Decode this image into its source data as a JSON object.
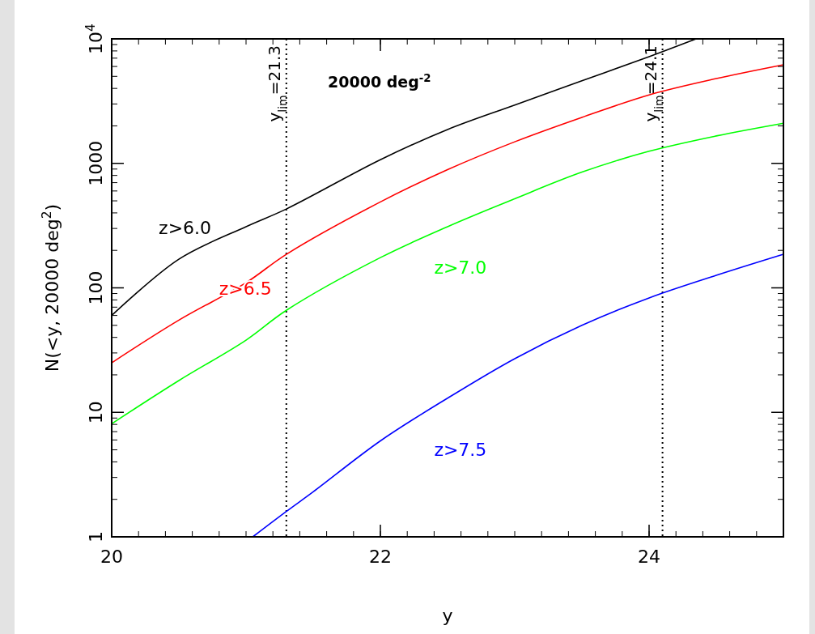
{
  "chart_data": {
    "type": "line",
    "xlabel": "y",
    "ylabel": "N(<y,  20000  deg$^{2}$)",
    "log": "y",
    "xlim": [
      20,
      25
    ],
    "xticks": [
      20,
      22,
      24
    ],
    "ylim": [
      1,
      10000
    ],
    "yticks": [
      1,
      10,
      100,
      1000,
      {
        "value": 10000,
        "label": "10$^{4}$"
      }
    ],
    "grid": false,
    "marker": "none",
    "line_style": "solid",
    "annotations": [
      "20000 deg$^{-2}$"
    ],
    "ref_lines": [
      {
        "axis": "x",
        "value": 21.3,
        "label": "y$_{lim}$=21.3",
        "line_style": "dotted",
        "color": "#000000"
      },
      {
        "axis": "x",
        "value": 24.1,
        "label": "y$_{lim}$=24.1",
        "line_style": "dotted",
        "color": "#000000"
      }
    ],
    "series": [
      {
        "name": "z>6.0",
        "color": "#000000",
        "x": [
          20,
          20.5,
          21,
          21.3,
          22,
          22.5,
          23,
          23.5,
          24,
          24.35
        ],
        "values": [
          60,
          170,
          310,
          430,
          1070,
          1870,
          2940,
          4600,
          7200,
          10000
        ]
      },
      {
        "name": "z>6.5",
        "color": "#ff0000",
        "x": [
          20,
          20.5,
          21,
          21.3,
          22,
          22.5,
          23,
          23.5,
          24,
          24.5,
          25
        ],
        "values": [
          25,
          55,
          110,
          186,
          490,
          890,
          1490,
          2340,
          3550,
          4800,
          6200
        ]
      },
      {
        "name": "z>7.0",
        "color": "#00ff00",
        "x": [
          20,
          20.5,
          21,
          21.3,
          22,
          22.5,
          23,
          23.5,
          24,
          24.5,
          25
        ],
        "values": [
          8.1,
          18,
          38,
          66,
          175,
          310,
          520,
          850,
          1250,
          1660,
          2100
        ]
      },
      {
        "name": "z>7.5",
        "color": "#0000ff",
        "x": [
          21.05,
          21.3,
          21.5,
          22,
          22.5,
          23,
          23.5,
          24,
          24.5,
          25
        ],
        "values": [
          1,
          1.6,
          2.3,
          5.9,
          13,
          27,
          50,
          83,
          126,
          186
        ]
      }
    ]
  }
}
